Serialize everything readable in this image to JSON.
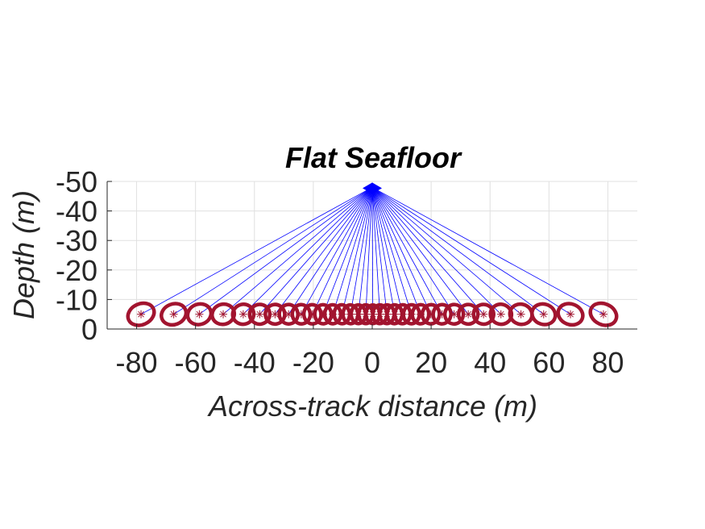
{
  "chart_data": {
    "type": "scatter",
    "title": "Flat Seafloor",
    "xlabel": "Across-track distance (m)",
    "ylabel": "Depth (m)",
    "xlim": [
      -90,
      90
    ],
    "ylim": [
      0,
      -50
    ],
    "y_reversed": true,
    "grid": true,
    "xticks": [
      -80,
      -60,
      -40,
      -20,
      0,
      20,
      40,
      60,
      80
    ],
    "xtick_labels": [
      "-80",
      "-60",
      "-40",
      "-20",
      "0",
      "20",
      "40",
      "60",
      "80"
    ],
    "yticks": [
      -50,
      -40,
      -30,
      -20,
      -10,
      0
    ],
    "ytick_labels": [
      "-50",
      "-40",
      "-30",
      "-20",
      "-10",
      "0"
    ],
    "source": {
      "x": 0,
      "y": -48
    },
    "seafloor_depth": -5,
    "beam_x": [
      -78.5,
      -67.4,
      -58.7,
      -50.6,
      -43.8,
      -38.2,
      -33.0,
      -28.4,
      -24.1,
      -20.3,
      -16.7,
      -13.4,
      -10.3,
      -7.4,
      -4.7,
      -2.2,
      0.2,
      2.6,
      5.0,
      7.6,
      10.3,
      13.3,
      16.4,
      19.9,
      23.7,
      27.8,
      32.6,
      37.8,
      43.7,
      50.5,
      58.2,
      67.3,
      78.5
    ],
    "colors": {
      "beam": "#0000ff",
      "ellipse": "#a2142f",
      "point": "#a2142f",
      "grid": "#e0e0e0",
      "axis": "#262626"
    },
    "markers": {
      "beam_end": "asterisk",
      "uncertainty": "ellipse"
    }
  }
}
